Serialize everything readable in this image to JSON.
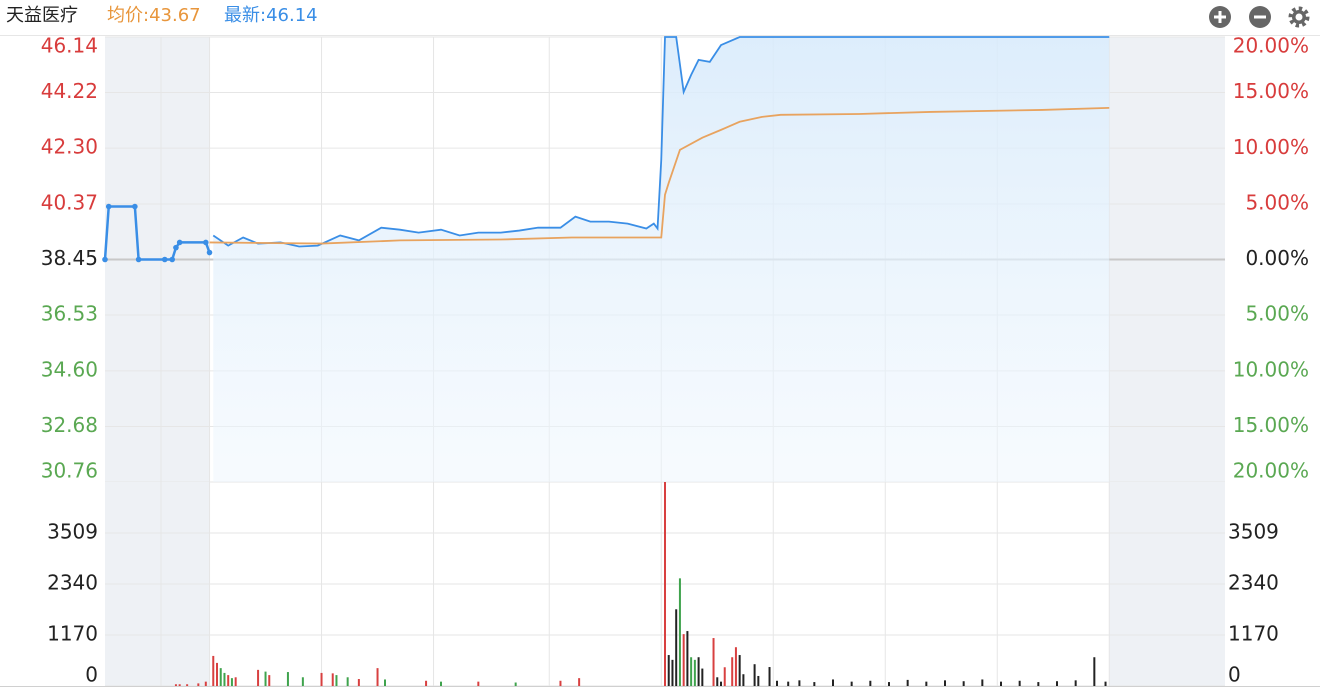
{
  "header": {
    "name": "天益医疗",
    "avg_label": "均价:",
    "avg": 43.67,
    "last_label": "最新:",
    "last": 46.14,
    "avg_color": "#e8963c",
    "last_color": "#3a8ee6"
  },
  "chart_data": [
    {
      "type": "line",
      "xlim": [
        0,
        300
      ],
      "xticks": [
        15,
        28,
        58,
        88,
        119,
        149,
        179,
        209,
        239,
        269
      ],
      "trading_window": [
        28,
        269
      ],
      "grid": true,
      "ylim": [
        30.76,
        46.14
      ],
      "yticks": [
        46.14,
        44.22,
        {
          "value": 42.3,
          "label": "42.30"
        },
        40.37,
        38.45,
        36.53,
        {
          "value": 34.6,
          "label": "34.60"
        },
        32.68,
        30.76
      ],
      "y2lim": [
        -20,
        20
      ],
      "y2ticks": [
        {
          "value": 20,
          "label": "20.00%"
        },
        {
          "value": 15,
          "label": "15.00%"
        },
        {
          "value": 10,
          "label": "10.00%"
        },
        {
          "value": 5,
          "label": "5.00%"
        },
        {
          "value": 0,
          "label": "0.00%"
        },
        {
          "value": -5,
          "label": "5.00%"
        },
        {
          "value": -10,
          "label": "10.00%"
        },
        {
          "value": -15,
          "label": "15.00%"
        },
        {
          "value": -20,
          "label": "20.00%"
        }
      ],
      "up_color": "#d83c3c",
      "down_color": "#5aa852",
      "flat_color": "#222222",
      "series": [
        {
          "color": "#3a8ee6",
          "markers": true,
          "x": [
            0,
            1,
            8,
            9,
            16,
            18,
            19,
            20,
            27,
            28
          ],
          "values": [
            38.45,
            40.28,
            40.28,
            38.45,
            38.45,
            38.45,
            38.86,
            39.04,
            39.04,
            38.69
          ]
        },
        {
          "color": "#3a8ee6",
          "fill": true,
          "x": [
            29,
            33,
            37,
            41,
            47,
            52,
            57,
            63,
            68,
            74,
            79,
            84,
            90,
            95,
            100,
            106,
            111,
            116,
            122,
            126,
            130,
            135,
            140,
            145,
            147,
            148,
            149,
            150,
            153,
            155,
            157,
            159,
            162,
            165,
            170,
            269
          ],
          "values": [
            39.28,
            38.93,
            39.21,
            39.0,
            39.04,
            38.9,
            38.93,
            39.28,
            39.11,
            39.55,
            39.48,
            39.38,
            39.48,
            39.28,
            39.38,
            39.38,
            39.45,
            39.55,
            39.55,
            39.93,
            39.76,
            39.76,
            39.69,
            39.52,
            39.69,
            39.52,
            41.9,
            46.14,
            46.14,
            44.24,
            44.83,
            45.35,
            45.28,
            45.86,
            46.14,
            46.14
          ]
        },
        {
          "color": "#e8a35f",
          "x": [
            28,
            58,
            79,
            106,
            125,
            149,
            150,
            151,
            154,
            160,
            165,
            170,
            176,
            181,
            202,
            221,
            251,
            269
          ],
          "values": [
            39.04,
            39.0,
            39.11,
            39.14,
            39.21,
            39.21,
            40.69,
            41.1,
            42.24,
            42.66,
            42.93,
            43.21,
            43.38,
            43.45,
            43.48,
            43.55,
            43.62,
            43.69
          ]
        }
      ]
    },
    {
      "type": "bar",
      "xlim": [
        0,
        300
      ],
      "xticks": [
        15,
        28,
        58,
        88,
        119,
        149,
        179,
        209,
        239,
        269
      ],
      "trading_window": [
        28,
        269
      ],
      "grid": true,
      "ylim": [
        0,
        4680
      ],
      "yticks": [
        0,
        1170,
        2340,
        3509
      ],
      "series": [
        {
          "color": "#d84040",
          "x": [
            19,
            20,
            22,
            25,
            27,
            29,
            30,
            33,
            35,
            41,
            44,
            58,
            61,
            68,
            73,
            86,
            100,
            122,
            127,
            150,
            155,
            163,
            166,
            168,
            169
          ],
          "values": [
            40,
            40,
            40,
            60,
            100,
            690,
            530,
            250,
            200,
            370,
            250,
            300,
            290,
            160,
            410,
            120,
            100,
            120,
            180,
            4680,
            1190,
            1100,
            430,
            660,
            890
          ]
        },
        {
          "color": "#3fa34d",
          "x": [
            31,
            32,
            34,
            43,
            49,
            53,
            62,
            65,
            75,
            90,
            110,
            154,
            157,
            158
          ],
          "values": [
            410,
            300,
            180,
            330,
            320,
            200,
            250,
            200,
            150,
            100,
            80,
            2470,
            660,
            600
          ]
        },
        {
          "color": "#222222",
          "x": [
            151,
            152,
            153,
            156,
            159,
            160,
            164,
            165,
            170,
            171,
            174,
            175,
            178,
            180,
            183,
            186,
            190,
            195,
            200,
            205,
            210,
            215,
            220,
            225,
            230,
            235,
            240,
            245,
            250,
            255,
            260,
            265,
            268
          ],
          "values": [
            710,
            600,
            1760,
            1260,
            660,
            400,
            200,
            100,
            710,
            270,
            500,
            230,
            435,
            120,
            100,
            130,
            90,
            150,
            100,
            120,
            90,
            140,
            100,
            130,
            110,
            150,
            100,
            120,
            90,
            110,
            130,
            660,
            100
          ]
        }
      ]
    }
  ]
}
